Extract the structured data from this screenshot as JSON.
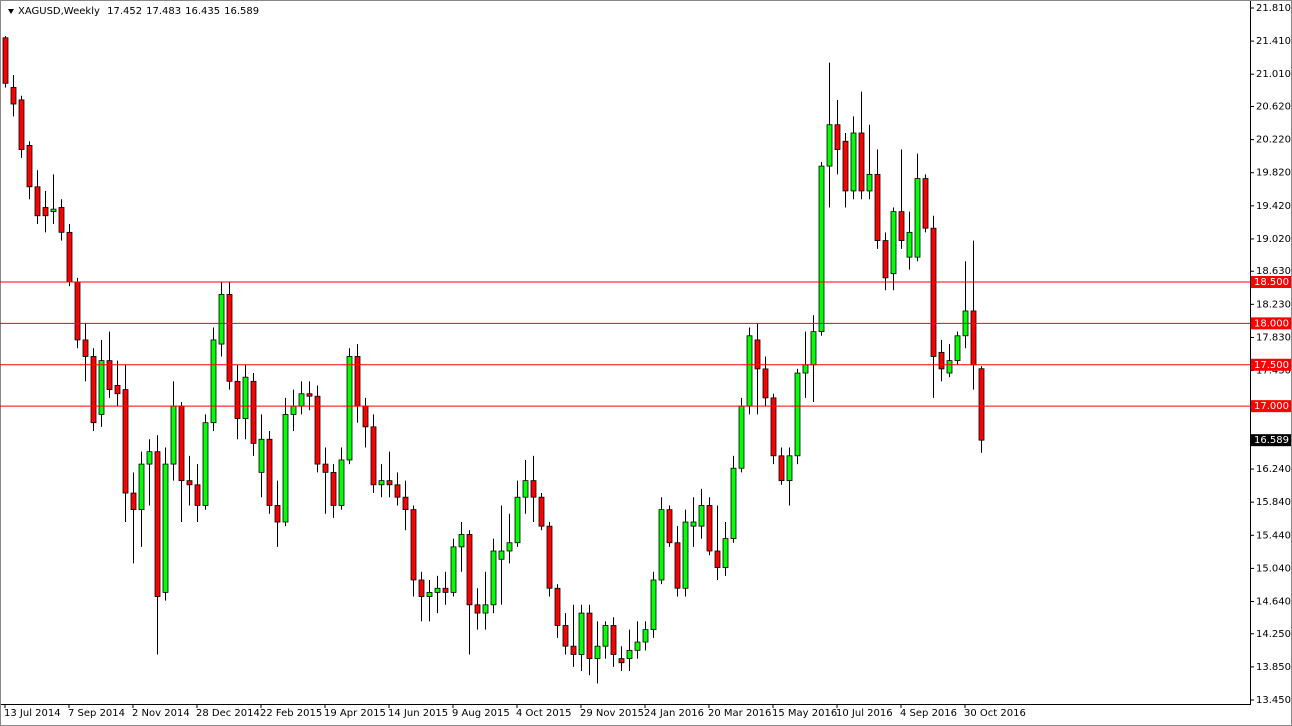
{
  "chart_data": {
    "type": "candlestick",
    "title": "XAGUSD,Weekly",
    "categories": [
      "13 Jul 2014",
      null,
      null,
      null,
      null,
      null,
      null,
      null,
      "7 Sep 2014",
      null,
      null,
      null,
      null,
      null,
      null,
      null,
      "2 Nov 2014",
      null,
      null,
      null,
      null,
      null,
      null,
      null,
      "28 Dec 2014",
      null,
      null,
      null,
      null,
      null,
      null,
      null,
      "22 Feb 2015",
      null,
      null,
      null,
      null,
      null,
      null,
      null,
      "19 Apr 2015",
      null,
      null,
      null,
      null,
      null,
      null,
      null,
      "14 Jun 2015",
      null,
      null,
      null,
      null,
      null,
      null,
      null,
      "9 Aug 2015",
      null,
      null,
      null,
      null,
      null,
      null,
      null,
      "4 Oct 2015",
      null,
      null,
      null,
      null,
      null,
      null,
      null,
      "29 Nov 2015",
      null,
      null,
      null,
      null,
      null,
      null,
      null,
      "24 Jan 2016",
      null,
      null,
      null,
      null,
      null,
      null,
      null,
      "20 Mar 2016",
      null,
      null,
      null,
      null,
      null,
      null,
      null,
      "15 May 2016",
      null,
      null,
      null,
      null,
      null,
      null,
      null,
      "10 Jul 2016",
      null,
      null,
      null,
      null,
      null,
      null,
      null,
      "4 Sep 2016",
      null,
      null,
      null,
      null,
      null,
      null,
      null,
      "30 Oct 2016",
      null,
      null
    ],
    "open": [
      21.45,
      20.85,
      20.7,
      20.15,
      19.65,
      19.4,
      19.35,
      19.4,
      19.1,
      18.5,
      17.8,
      17.6,
      16.9,
      17.55,
      17.25,
      17.2,
      15.95,
      15.75,
      16.3,
      16.45,
      14.75,
      16.3,
      17.0,
      16.1,
      16.05,
      15.8,
      16.8,
      17.75,
      18.35,
      17.3,
      16.85,
      17.3,
      16.2,
      16.6,
      15.8,
      15.6,
      16.9,
      17.0,
      17.15,
      17.12,
      16.3,
      16.2,
      15.8,
      16.35,
      17.6,
      17.0,
      16.75,
      16.05,
      16.1,
      16.05,
      15.9,
      15.75,
      14.9,
      14.7,
      14.75,
      14.8,
      14.75,
      15.3,
      15.45,
      14.6,
      14.5,
      14.6,
      15.15,
      15.25,
      15.35,
      15.9,
      16.1,
      15.9,
      15.55,
      14.8,
      14.35,
      14.1,
      14.0,
      14.5,
      13.95,
      14.1,
      14.35,
      13.95,
      13.95,
      14.05,
      14.15,
      14.3,
      14.9,
      15.75,
      15.35,
      14.8,
      15.55,
      15.55,
      15.8,
      15.25,
      15.05,
      15.4,
      16.25,
      17.0,
      17.8,
      17.45,
      17.1,
      16.4,
      16.1,
      16.4,
      17.4,
      17.5,
      17.9,
      19.9,
      20.4,
      20.2,
      19.6,
      20.3,
      19.6,
      19.8,
      19.0,
      18.6,
      19.35,
      18.8,
      18.8,
      19.75,
      19.15,
      17.65,
      17.4,
      17.55,
      17.85,
      18.15,
      17.452
    ],
    "high": [
      21.47,
      21.0,
      20.75,
      20.2,
      19.85,
      19.6,
      19.8,
      19.5,
      19.2,
      18.55,
      18.0,
      17.7,
      17.8,
      17.9,
      17.55,
      17.5,
      16.2,
      16.45,
      16.6,
      16.65,
      16.5,
      17.3,
      17.05,
      16.4,
      16.3,
      16.9,
      17.95,
      18.5,
      18.5,
      17.5,
      17.5,
      17.4,
      16.9,
      16.7,
      16.1,
      17.1,
      17.2,
      17.3,
      17.3,
      17.25,
      16.5,
      16.3,
      16.5,
      17.7,
      17.75,
      17.1,
      16.9,
      16.3,
      16.45,
      16.2,
      16.1,
      15.8,
      15.0,
      14.9,
      14.95,
      15.0,
      15.4,
      15.6,
      15.5,
      14.8,
      15.0,
      15.4,
      15.8,
      15.7,
      16.1,
      16.35,
      16.4,
      15.95,
      15.6,
      14.85,
      14.5,
      14.6,
      14.6,
      14.6,
      14.4,
      14.4,
      14.45,
      14.1,
      14.3,
      14.4,
      14.4,
      15.0,
      15.9,
      15.8,
      15.55,
      15.75,
      15.9,
      16.0,
      15.9,
      15.8,
      15.6,
      16.4,
      17.1,
      17.95,
      18.0,
      17.6,
      17.15,
      16.5,
      16.5,
      17.45,
      17.9,
      18.1,
      19.95,
      21.15,
      20.7,
      20.3,
      20.5,
      20.8,
      20.4,
      20.1,
      19.1,
      19.4,
      20.1,
      19.35,
      20.05,
      19.8,
      19.3,
      17.8,
      17.75,
      17.9,
      18.75,
      19.0,
      17.483
    ],
    "low": [
      20.85,
      20.5,
      20.0,
      19.5,
      19.2,
      19.1,
      19.2,
      19.0,
      18.45,
      17.7,
      17.3,
      16.7,
      16.75,
      17.1,
      17.0,
      15.6,
      15.1,
      15.3,
      15.8,
      14.0,
      14.65,
      16.1,
      15.6,
      15.8,
      15.6,
      15.75,
      16.7,
      17.6,
      17.2,
      16.6,
      16.6,
      16.4,
      15.9,
      15.7,
      15.3,
      15.55,
      16.7,
      16.9,
      16.95,
      16.2,
      15.7,
      15.65,
      15.75,
      16.3,
      16.8,
      16.5,
      15.95,
      15.9,
      15.9,
      15.8,
      15.5,
      14.7,
      14.4,
      14.4,
      14.5,
      14.6,
      14.7,
      15.0,
      14.0,
      14.3,
      14.3,
      14.5,
      14.6,
      15.1,
      15.3,
      15.7,
      15.6,
      15.5,
      14.7,
      14.2,
      14.0,
      13.85,
      13.8,
      13.75,
      13.65,
      13.95,
      13.85,
      13.8,
      13.8,
      13.95,
      14.05,
      14.2,
      14.85,
      15.3,
      14.7,
      14.7,
      15.3,
      15.4,
      15.2,
      14.9,
      14.95,
      15.35,
      16.2,
      16.9,
      16.9,
      17.0,
      16.3,
      16.05,
      15.8,
      16.3,
      17.1,
      17.05,
      17.85,
      19.4,
      19.8,
      19.4,
      19.5,
      19.5,
      19.5,
      18.9,
      18.4,
      18.4,
      18.9,
      18.65,
      18.75,
      19.1,
      17.1,
      17.3,
      17.35,
      17.5,
      17.7,
      17.2,
      16.435
    ],
    "close": [
      20.9,
      20.65,
      20.1,
      19.65,
      19.3,
      19.3,
      19.38,
      19.1,
      18.5,
      17.8,
      17.6,
      16.8,
      17.55,
      17.2,
      17.15,
      15.95,
      15.75,
      16.3,
      16.45,
      14.7,
      16.3,
      17.0,
      16.1,
      16.05,
      15.8,
      16.8,
      17.8,
      18.35,
      17.3,
      16.85,
      17.35,
      16.55,
      16.6,
      15.8,
      15.6,
      16.9,
      17.0,
      17.15,
      17.12,
      16.3,
      16.2,
      15.8,
      16.35,
      17.6,
      17.0,
      16.75,
      16.05,
      16.1,
      16.05,
      15.9,
      15.75,
      14.9,
      14.7,
      14.75,
      14.8,
      14.75,
      15.3,
      15.45,
      14.6,
      14.5,
      14.6,
      15.25,
      15.25,
      15.35,
      15.9,
      16.1,
      15.9,
      15.55,
      14.8,
      14.35,
      14.1,
      14.0,
      14.5,
      13.95,
      14.1,
      14.35,
      14.0,
      13.9,
      14.05,
      14.15,
      14.3,
      14.9,
      15.75,
      15.35,
      14.8,
      15.6,
      15.6,
      15.8,
      15.25,
      15.05,
      15.4,
      16.25,
      17.0,
      17.85,
      17.45,
      17.1,
      16.4,
      16.1,
      16.4,
      17.4,
      17.5,
      17.9,
      19.9,
      20.4,
      20.1,
      19.6,
      20.3,
      19.6,
      19.8,
      19.0,
      18.55,
      19.35,
      19.0,
      19.1,
      19.75,
      19.15,
      17.6,
      17.45,
      17.55,
      17.85,
      18.15,
      17.5,
      16.589
    ],
    "up_color": "#00ff00",
    "down_color": "#ff0000",
    "level_color": "#ff0000",
    "ylim": [
      13.45,
      21.81
    ],
    "yticks": [
      {
        "value": 21.81,
        "label": "21.810"
      },
      {
        "value": 21.41,
        "label": "21.410"
      },
      {
        "value": 21.01,
        "label": "21.010"
      },
      {
        "value": 20.62,
        "label": "20.620"
      },
      {
        "value": 20.22,
        "label": "20.220"
      },
      {
        "value": 19.82,
        "label": "19.820"
      },
      {
        "value": 19.42,
        "label": "19.420"
      },
      {
        "value": 19.02,
        "label": "19.020"
      },
      {
        "value": 18.63,
        "label": "18.630"
      },
      {
        "value": 18.23,
        "label": "18.230"
      },
      {
        "value": 17.83,
        "label": "17.830"
      },
      {
        "value": 17.43,
        "label": "17.430"
      },
      {
        "value": 16.24,
        "label": "16.240"
      },
      {
        "value": 15.84,
        "label": "15.840"
      },
      {
        "value": 15.44,
        "label": "15.440"
      },
      {
        "value": 15.04,
        "label": "15.040"
      },
      {
        "value": 14.64,
        "label": "14.640"
      },
      {
        "value": 14.25,
        "label": "14.250"
      },
      {
        "value": 13.85,
        "label": "13.850"
      },
      {
        "value": 13.45,
        "label": "13.450"
      }
    ],
    "levels": [
      {
        "value": 18.5,
        "label": "18.500"
      },
      {
        "value": 18,
        "label": "18.000"
      },
      {
        "value": 17.5,
        "label": "17.500"
      },
      {
        "value": 17,
        "label": "17.000"
      }
    ],
    "grid": false
  }
}
